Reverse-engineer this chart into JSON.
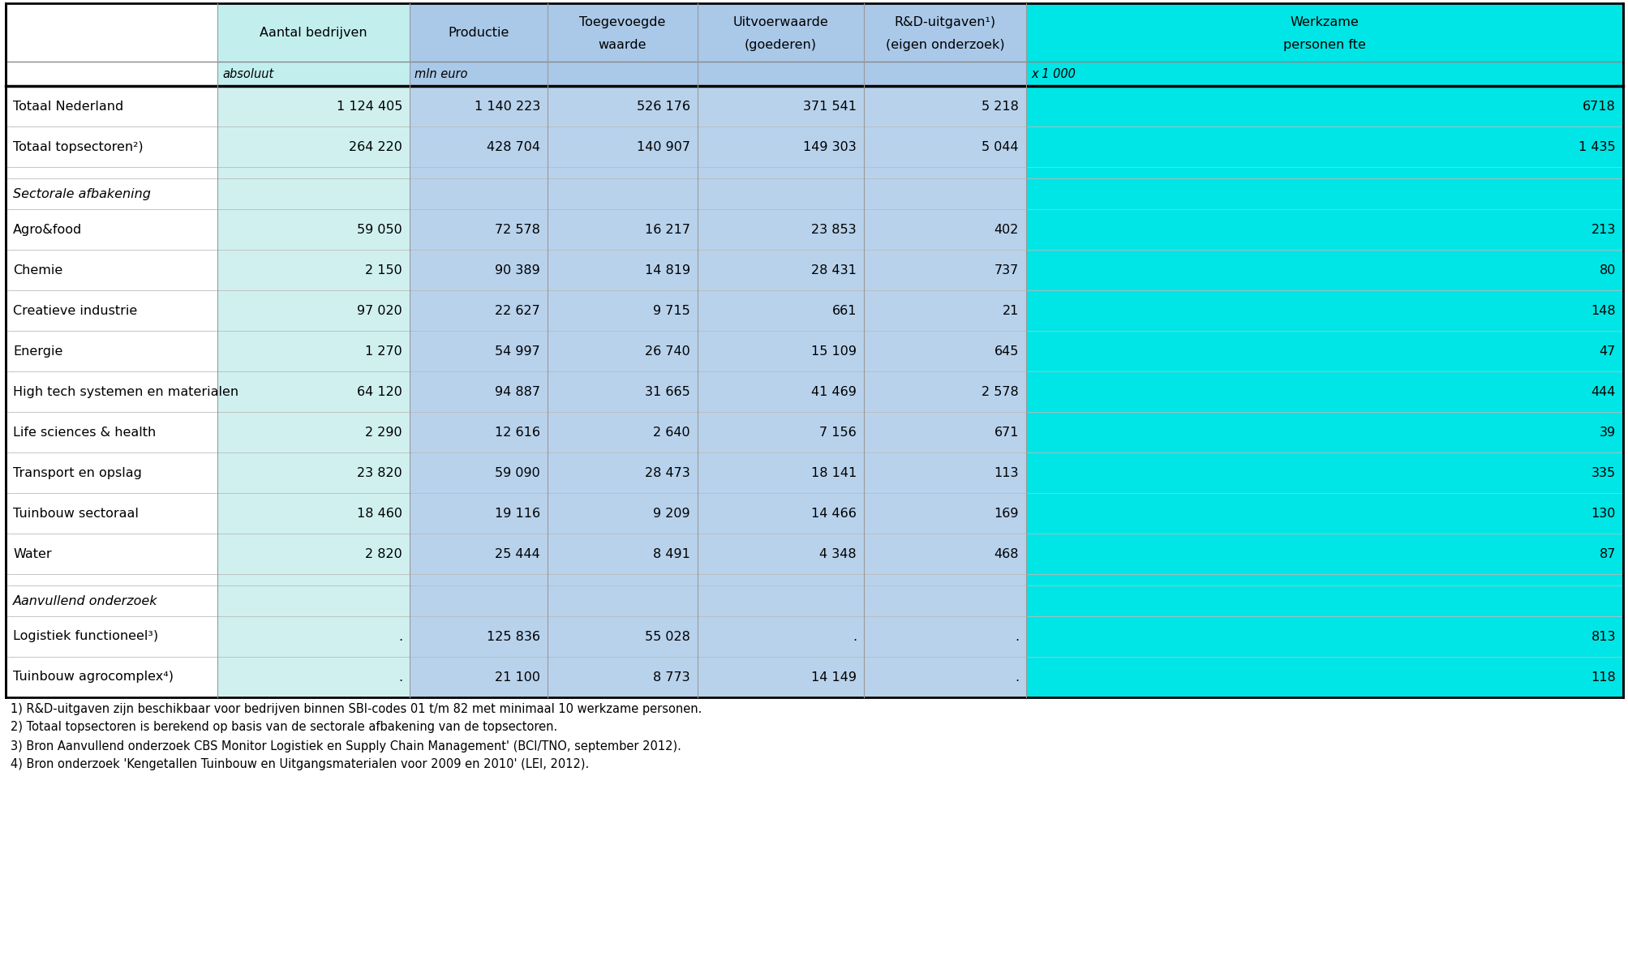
{
  "col_headers_line1": [
    "Aantal bedrijven",
    "Productie",
    "Toegevoegde",
    "Uitvoerwaarde",
    "R&D-uitgaven¹)",
    "Werkzame"
  ],
  "col_headers_line2": [
    "",
    "",
    "waarde",
    "(goederen)",
    "(eigen onderzoek)",
    "personen fte"
  ],
  "col_subheaders": [
    "absoluut",
    "mln euro",
    "",
    "",
    "",
    "x 1 000"
  ],
  "rows": [
    {
      "label": "Totaal Nederland",
      "italic": false,
      "type": "data",
      "values": [
        "1 124 405",
        "1 140 223",
        "526 176",
        "371 541",
        "5 218",
        "6718"
      ]
    },
    {
      "label": "Totaal topsectoren²)",
      "italic": false,
      "type": "data",
      "values": [
        "264 220",
        "428 704",
        "140 907",
        "149 303",
        "5 044",
        "1 435"
      ]
    },
    {
      "label": "",
      "italic": false,
      "type": "blank",
      "values": [
        "",
        "",
        "",
        "",
        "",
        ""
      ]
    },
    {
      "label": "Sectorale afbakening",
      "italic": true,
      "type": "section",
      "values": [
        "",
        "",
        "",
        "",
        "",
        ""
      ]
    },
    {
      "label": "Agro&food",
      "italic": false,
      "type": "data",
      "values": [
        "59 050",
        "72 578",
        "16 217",
        "23 853",
        "402",
        "213"
      ]
    },
    {
      "label": "Chemie",
      "italic": false,
      "type": "data",
      "values": [
        "2 150",
        "90 389",
        "14 819",
        "28 431",
        "737",
        "80"
      ]
    },
    {
      "label": "Creatieve industrie",
      "italic": false,
      "type": "data",
      "values": [
        "97 020",
        "22 627",
        "9 715",
        "661",
        "21",
        "148"
      ]
    },
    {
      "label": "Energie",
      "italic": false,
      "type": "data",
      "values": [
        "1 270",
        "54 997",
        "26 740",
        "15 109",
        "645",
        "47"
      ]
    },
    {
      "label": "High tech systemen en materialen",
      "italic": false,
      "type": "data",
      "values": [
        "64 120",
        "94 887",
        "31 665",
        "41 469",
        "2 578",
        "444"
      ]
    },
    {
      "label": "Life sciences & health",
      "italic": false,
      "type": "data",
      "values": [
        "2 290",
        "12 616",
        "2 640",
        "7 156",
        "671",
        "39"
      ]
    },
    {
      "label": "Transport en opslag",
      "italic": false,
      "type": "data",
      "values": [
        "23 820",
        "59 090",
        "28 473",
        "18 141",
        "113",
        "335"
      ]
    },
    {
      "label": "Tuinbouw sectoraal",
      "italic": false,
      "type": "data",
      "values": [
        "18 460",
        "19 116",
        "9 209",
        "14 466",
        "169",
        "130"
      ]
    },
    {
      "label": "Water",
      "italic": false,
      "type": "data",
      "values": [
        "2 820",
        "25 444",
        "8 491",
        "4 348",
        "468",
        "87"
      ]
    },
    {
      "label": "",
      "italic": false,
      "type": "blank",
      "values": [
        "",
        "",
        "",
        "",
        "",
        ""
      ]
    },
    {
      "label": "Aanvullend onderzoek",
      "italic": true,
      "type": "section",
      "values": [
        "",
        "",
        "",
        "",
        "",
        ""
      ]
    },
    {
      "label": "Logistiek functioneel³)",
      "italic": false,
      "type": "data",
      "values": [
        ".",
        "125 836",
        "55 028",
        ".",
        ".",
        "813"
      ]
    },
    {
      "label": "Tuinbouw agrocomplex⁴)",
      "italic": false,
      "type": "data",
      "values": [
        ".",
        "21 100",
        "8 773",
        "14 149",
        ".",
        "118"
      ]
    }
  ],
  "footnotes": [
    "1) R&D-uitgaven zijn beschikbaar voor bedrijven binnen SBI-codes 01 t/m 82 met minimaal 10 werkzame personen.",
    "2) Totaal topsectoren is berekend op basis van de sectorale afbakening van de topsectoren.",
    "3) Bron Aanvullend onderzoek CBS Monitor Logistiek en Supply Chain Management' (BCI/TNO, september 2012).",
    "4) Bron onderzoek 'Kengetallen Tuinbouw en Uitgangsmaterialen voor 2009 en 2010' (LEI, 2012)."
  ],
  "col_colors_header": [
    "#ffffff",
    "#c2eeee",
    "#aac8e8",
    "#aac8e8",
    "#aac8e8",
    "#aac8e8",
    "#00e5e5"
  ],
  "col_colors_data": [
    "#ffffff",
    "#d0f0f0",
    "#b8d2ec",
    "#b8d2ec",
    "#b8d2ec",
    "#b8d2ec",
    "#00e5e5"
  ]
}
